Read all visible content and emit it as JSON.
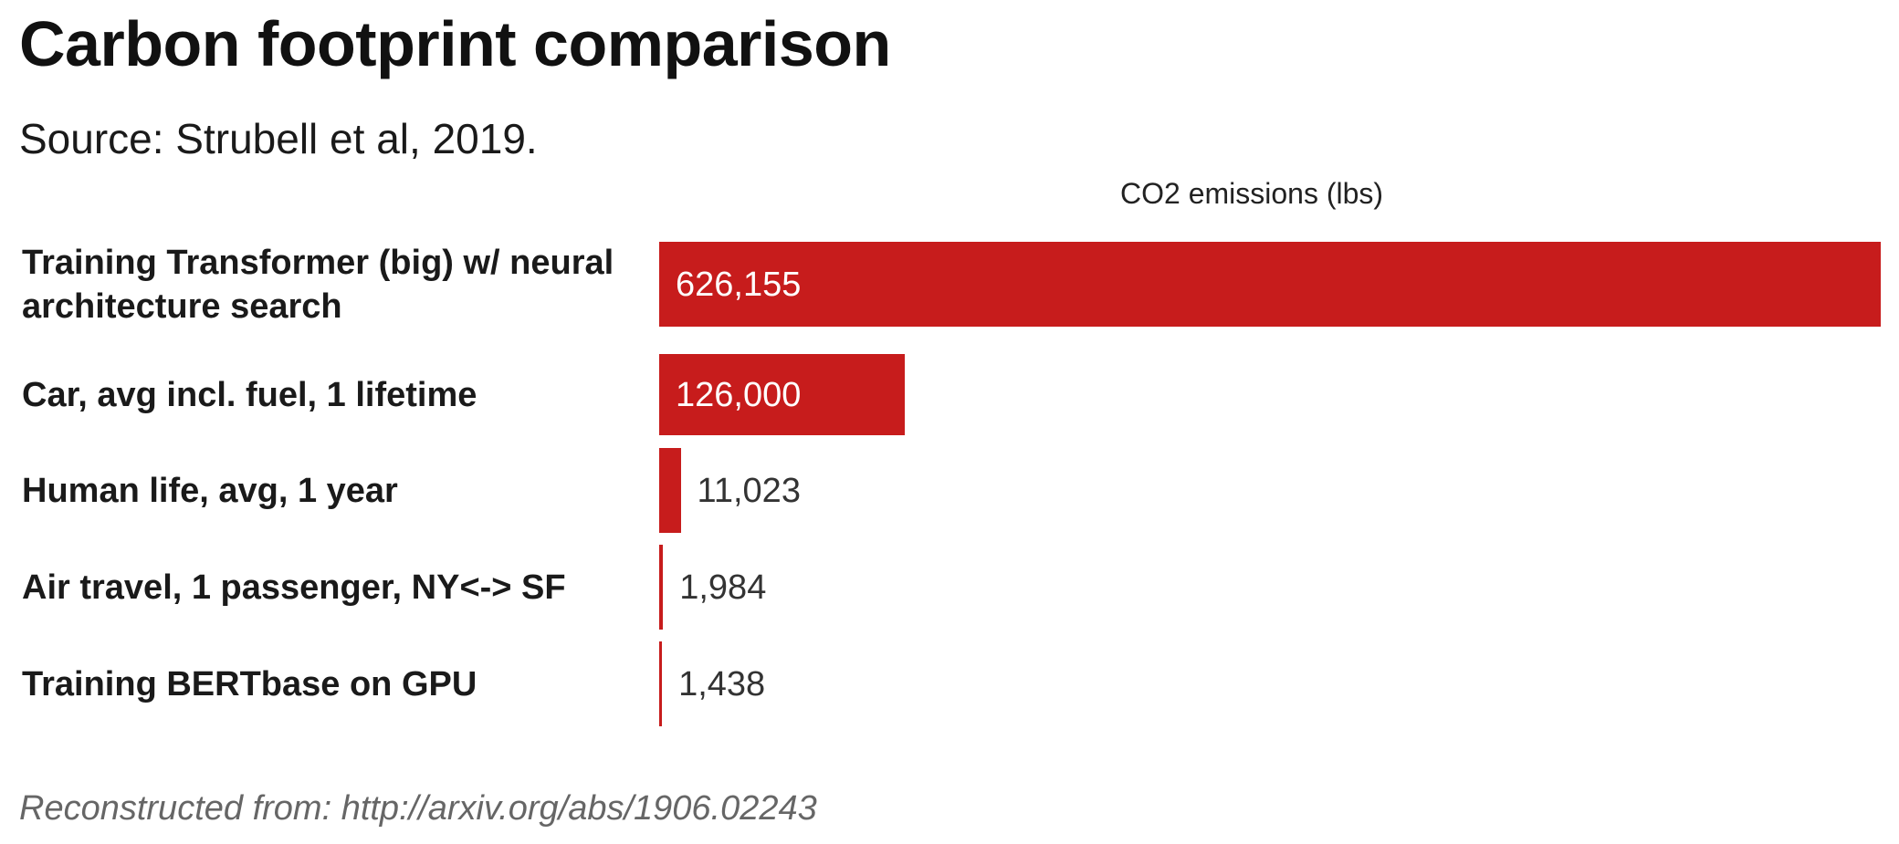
{
  "title": "Carbon footprint comparison",
  "subtitle": "Source: Strubell et al, 2019.",
  "footer": "Reconstructed from: http://arxiv.org/abs/1906.02243",
  "colors": {
    "bar": "#c71c1c",
    "label_inside": "#ffffff",
    "label_outside": "#333333"
  },
  "chart_data": {
    "type": "bar",
    "orientation": "horizontal",
    "title": "Carbon footprint comparison",
    "xlabel": "CO2 emissions (lbs)",
    "ylabel": "",
    "categories": [
      "Training Transformer (big) w/ neural architecture search",
      "Car, avg incl. fuel, 1 lifetime",
      "Human life, avg, 1 year",
      "Air travel, 1 passenger, NY<-> SF",
      "Training BERTbase on GPU"
    ],
    "values": [
      626155,
      126000,
      11023,
      1984,
      1438
    ],
    "value_labels": [
      "626,155",
      "126,000",
      "11,023",
      "1,984",
      "1,438"
    ],
    "xlim": [
      0,
      626155
    ],
    "grid": false,
    "legend": "none"
  }
}
